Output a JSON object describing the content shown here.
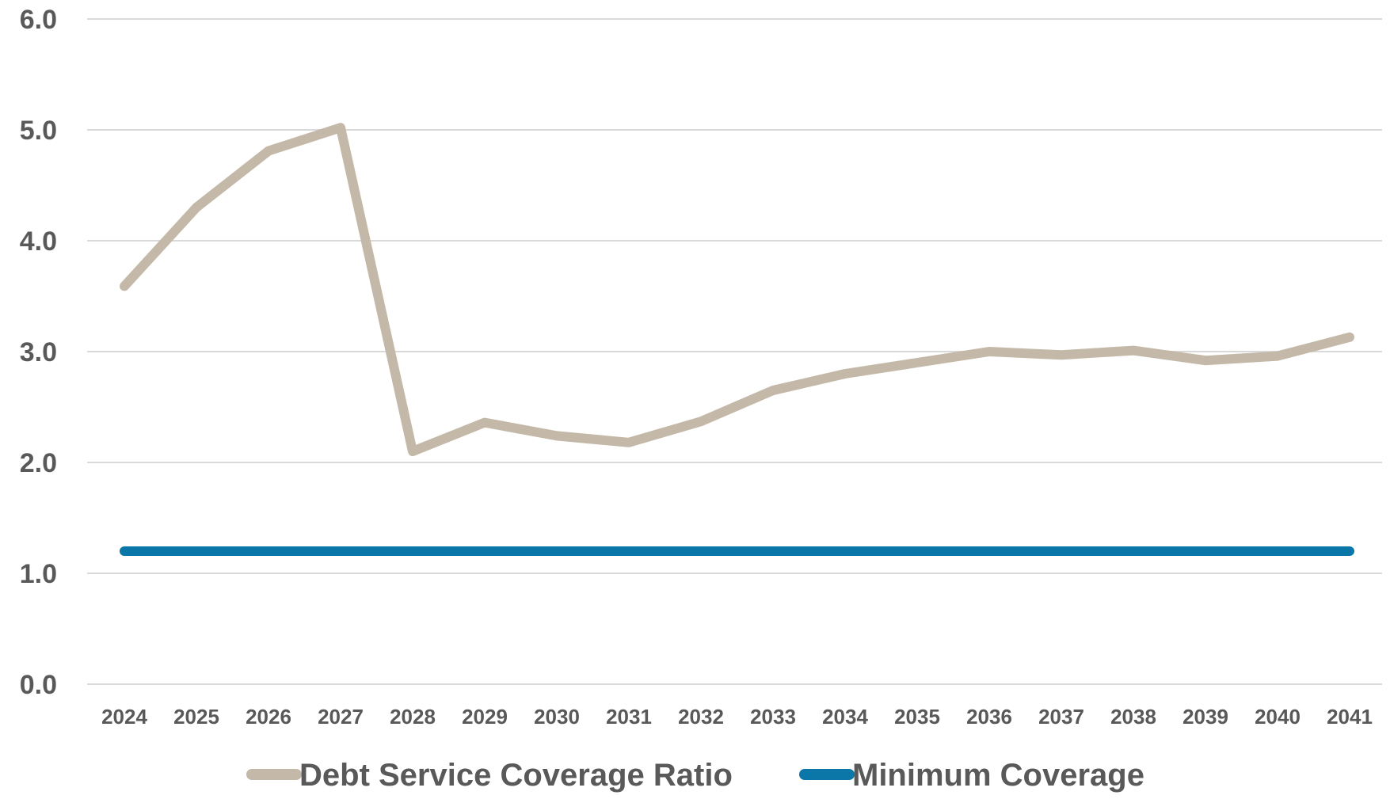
{
  "chart_data": {
    "type": "line",
    "categories": [
      "2024",
      "2025",
      "2026",
      "2027",
      "2028",
      "2029",
      "2030",
      "2031",
      "2032",
      "2033",
      "2034",
      "2035",
      "2036",
      "2037",
      "2038",
      "2039",
      "2040",
      "2041"
    ],
    "series": [
      {
        "name": "Debt Service Coverage Ratio",
        "color": "#c4b9a8",
        "values": [
          3.59,
          4.3,
          4.81,
          5.02,
          2.1,
          2.36,
          2.24,
          2.18,
          2.37,
          2.65,
          2.8,
          2.9,
          3.0,
          2.97,
          3.01,
          2.92,
          2.96,
          3.13
        ]
      },
      {
        "name": "Minimum Coverage",
        "color": "#0b76a8",
        "values": [
          1.2,
          1.2,
          1.2,
          1.2,
          1.2,
          1.2,
          1.2,
          1.2,
          1.2,
          1.2,
          1.2,
          1.2,
          1.2,
          1.2,
          1.2,
          1.2,
          1.2,
          1.2
        ]
      }
    ],
    "title": "",
    "xlabel": "",
    "ylabel": "",
    "ylim": [
      0,
      6
    ],
    "yticks": [
      "0.0",
      "1.0",
      "2.0",
      "3.0",
      "4.0",
      "5.0",
      "6.0"
    ],
    "grid": true,
    "legend_position": "bottom"
  }
}
